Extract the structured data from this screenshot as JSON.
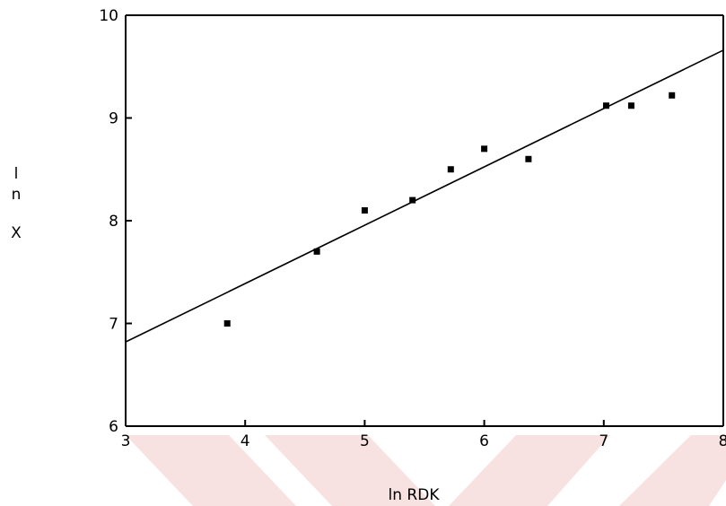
{
  "chart_data": {
    "type": "scatter",
    "title": "",
    "xlabel": "ln RDK",
    "ylabel_chars": [
      "l",
      "n",
      "X"
    ],
    "xlim": [
      3,
      8
    ],
    "ylim": [
      6,
      10
    ],
    "xticks": [
      3,
      4,
      5,
      6,
      7,
      8
    ],
    "yticks": [
      6,
      7,
      8,
      9,
      10
    ],
    "xtick_labels": [
      "3",
      "4",
      "5",
      "6",
      "7",
      "8"
    ],
    "ytick_labels": [
      "6",
      "7",
      "8",
      "9",
      "10"
    ],
    "grid": false,
    "series": [
      {
        "type": "scatter",
        "points": [
          [
            3.85,
            7.0
          ],
          [
            4.6,
            7.7
          ],
          [
            5.0,
            8.1
          ],
          [
            5.4,
            8.2
          ],
          [
            5.72,
            8.5
          ],
          [
            6.0,
            8.7
          ],
          [
            6.37,
            8.6
          ],
          [
            7.02,
            9.12
          ],
          [
            7.23,
            9.12
          ],
          [
            7.57,
            9.22
          ]
        ]
      },
      {
        "type": "line",
        "points": [
          [
            3.0,
            6.82
          ],
          [
            8.0,
            9.66
          ]
        ]
      }
    ],
    "watermark_color": "#f2c9c9"
  }
}
